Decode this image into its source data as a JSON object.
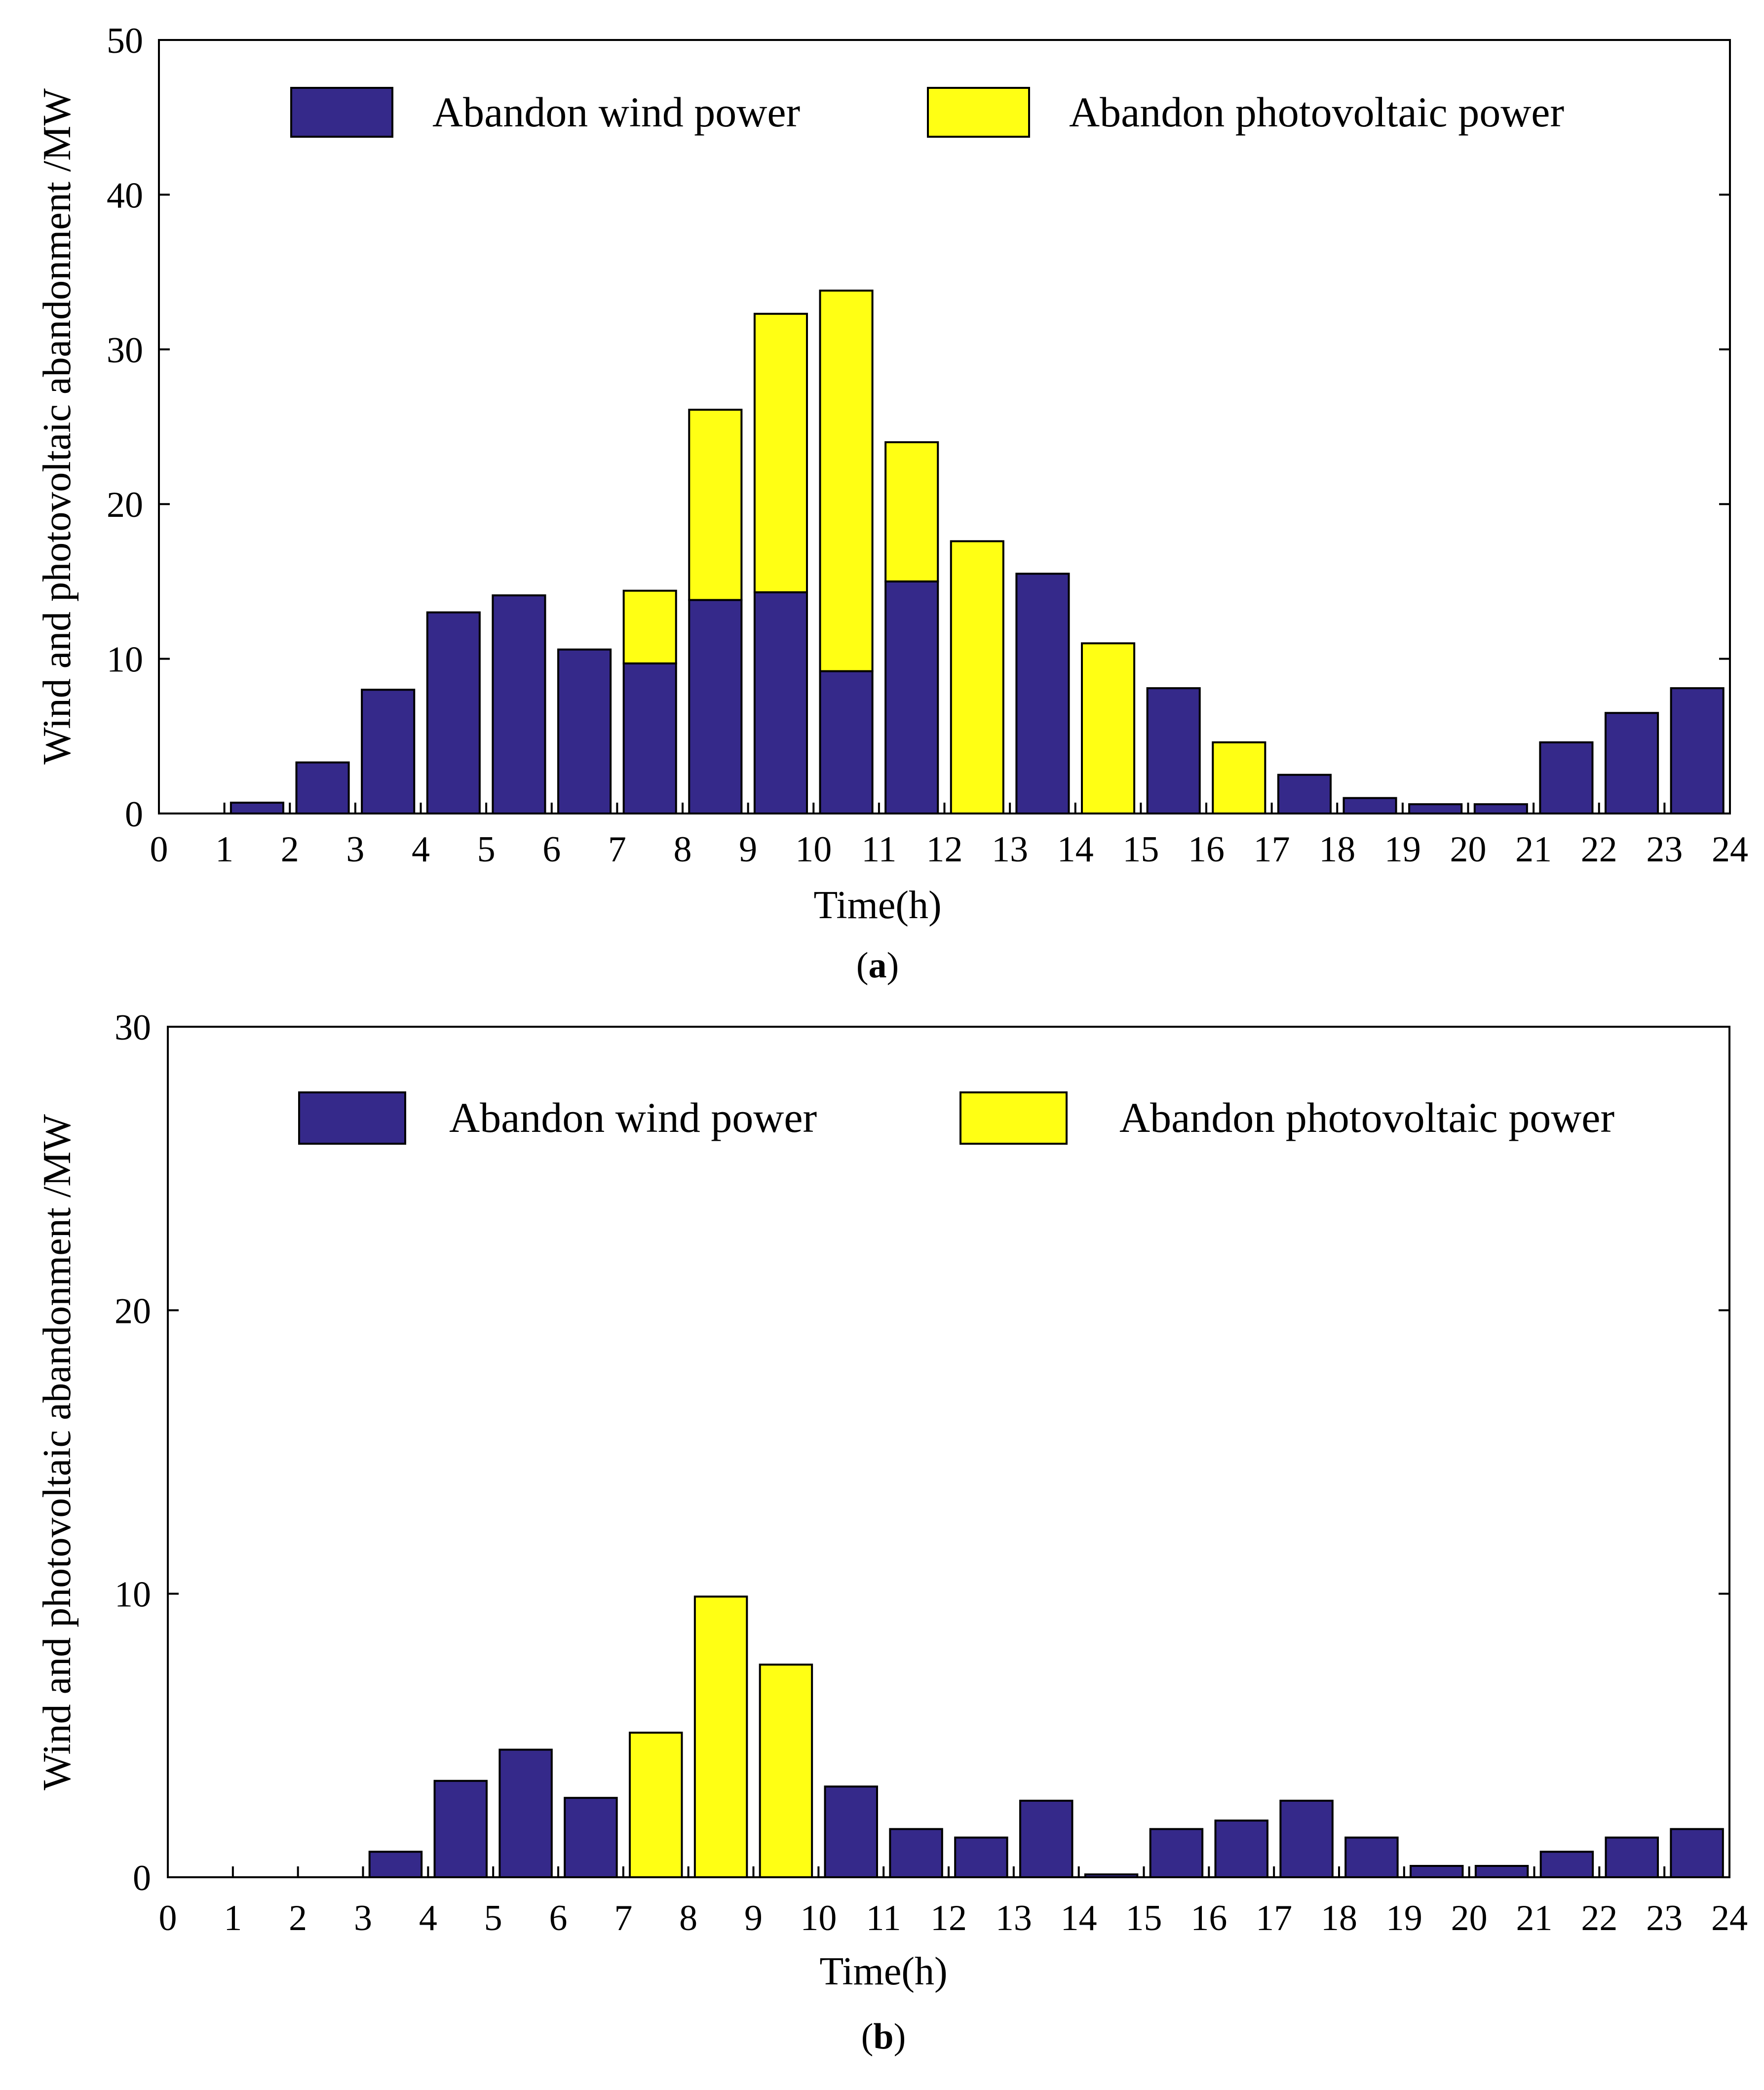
{
  "colors": {
    "wind": "#35298A",
    "pv": "#FFFF14",
    "stroke": "#000000"
  },
  "chart_data": [
    {
      "type": "bar",
      "stacked": true,
      "caption_letter": "a",
      "xlabel": "Time(h)",
      "ylabel": "Wind and photovoltaic abandonment /MW",
      "ylim": [
        0,
        50
      ],
      "xlim": [
        0,
        24
      ],
      "yticks": [
        "0",
        "10",
        "20",
        "30",
        "40",
        "50"
      ],
      "xticks": [
        "0",
        "1",
        "2",
        "3",
        "4",
        "5",
        "6",
        "7",
        "8",
        "9",
        "10",
        "11",
        "12",
        "13",
        "14",
        "15",
        "16",
        "17",
        "18",
        "19",
        "20",
        "21",
        "22",
        "23",
        "24"
      ],
      "categories": [
        1,
        2,
        3,
        4,
        5,
        6,
        7,
        8,
        9,
        10,
        11,
        12,
        13,
        14,
        15,
        16,
        17,
        18,
        19,
        20,
        21,
        22,
        23,
        24
      ],
      "legend_position": "top",
      "series": [
        {
          "name": "Abandon wind power",
          "color_key": "wind",
          "values": [
            0,
            0.7,
            3.3,
            8,
            13,
            14.1,
            10.6,
            9.7,
            13.8,
            14.3,
            9.2,
            15.0,
            0,
            15.5,
            0,
            8.1,
            0,
            2.5,
            1.0,
            0.6,
            0.6,
            4.6,
            6.5,
            8.1
          ]
        },
        {
          "name": "Abandon photovoltaic power",
          "color_key": "pv",
          "values": [
            0,
            0,
            0,
            0,
            0,
            0,
            0,
            4.7,
            12.3,
            18.0,
            24.6,
            9.0,
            17.6,
            0,
            11.0,
            0,
            4.6,
            0,
            0,
            0,
            0,
            0,
            0,
            0
          ]
        }
      ]
    },
    {
      "type": "bar",
      "stacked": true,
      "caption_letter": "b",
      "xlabel": "Time(h)",
      "ylabel": "Wind and photovoltaic abandonment /MW",
      "ylim": [
        0,
        30
      ],
      "xlim": [
        0,
        24
      ],
      "yticks": [
        "0",
        "10",
        "20",
        "30"
      ],
      "xticks": [
        "0",
        "1",
        "2",
        "3",
        "4",
        "5",
        "6",
        "7",
        "8",
        "9",
        "10",
        "11",
        "12",
        "13",
        "14",
        "15",
        "16",
        "17",
        "18",
        "19",
        "20",
        "21",
        "22",
        "23",
        "24"
      ],
      "categories": [
        1,
        2,
        3,
        4,
        5,
        6,
        7,
        8,
        9,
        10,
        11,
        12,
        13,
        14,
        15,
        16,
        17,
        18,
        19,
        20,
        21,
        22,
        23,
        24
      ],
      "legend_position": "top",
      "series": [
        {
          "name": "Abandon wind power",
          "color_key": "wind",
          "values": [
            0,
            0,
            0,
            0.9,
            3.4,
            4.5,
            2.8,
            0,
            0,
            0,
            3.2,
            1.7,
            1.4,
            2.7,
            0.1,
            1.7,
            2.0,
            2.7,
            1.4,
            0.4,
            0.4,
            0.9,
            1.4,
            1.7
          ]
        },
        {
          "name": "Abandon photovoltaic power",
          "color_key": "pv",
          "values": [
            0,
            0,
            0,
            0,
            0,
            0,
            0,
            5.1,
            9.9,
            7.5,
            0,
            0,
            0,
            0,
            0,
            0,
            0,
            0,
            0,
            0,
            0,
            0,
            0,
            0
          ]
        }
      ]
    }
  ]
}
